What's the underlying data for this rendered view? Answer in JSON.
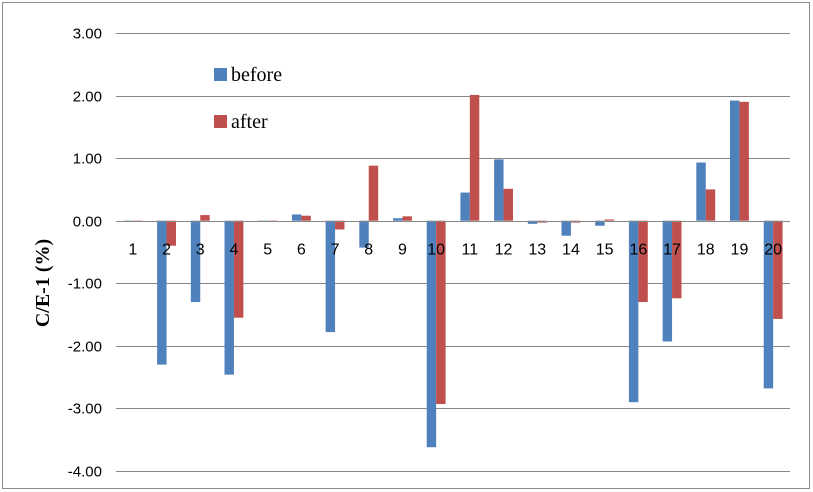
{
  "chart_data": {
    "type": "bar",
    "title": "",
    "xlabel": "",
    "ylabel": "C/E-1 (%)",
    "ylim": [
      -4.0,
      3.0
    ],
    "yticks": [
      "3.00",
      "2.00",
      "1.00",
      "0.00",
      "-1.00",
      "-2.00",
      "-3.00",
      "-4.00"
    ],
    "grid": true,
    "legend_position": "top-left",
    "categories": [
      "1",
      "2",
      "3",
      "4",
      "5",
      "6",
      "7",
      "8",
      "9",
      "10",
      "11",
      "12",
      "13",
      "14",
      "15",
      "16",
      "17",
      "18",
      "19",
      "20"
    ],
    "series": [
      {
        "name": "before",
        "color": "#4f81bd",
        "values": [
          0.0,
          -2.3,
          -1.3,
          -2.46,
          -0.01,
          0.1,
          -1.78,
          -0.43,
          0.04,
          -3.62,
          0.45,
          0.98,
          -0.05,
          -0.24,
          -0.08,
          -2.9,
          -1.93,
          0.93,
          1.92,
          -2.68
        ]
      },
      {
        "name": "after",
        "color": "#c0504d",
        "values": [
          -0.01,
          -0.4,
          0.09,
          -1.55,
          -0.01,
          0.08,
          -0.14,
          0.88,
          0.07,
          -2.93,
          2.01,
          0.51,
          -0.03,
          -0.03,
          0.02,
          -1.3,
          -1.24,
          0.5,
          1.9,
          -1.57
        ]
      }
    ]
  }
}
